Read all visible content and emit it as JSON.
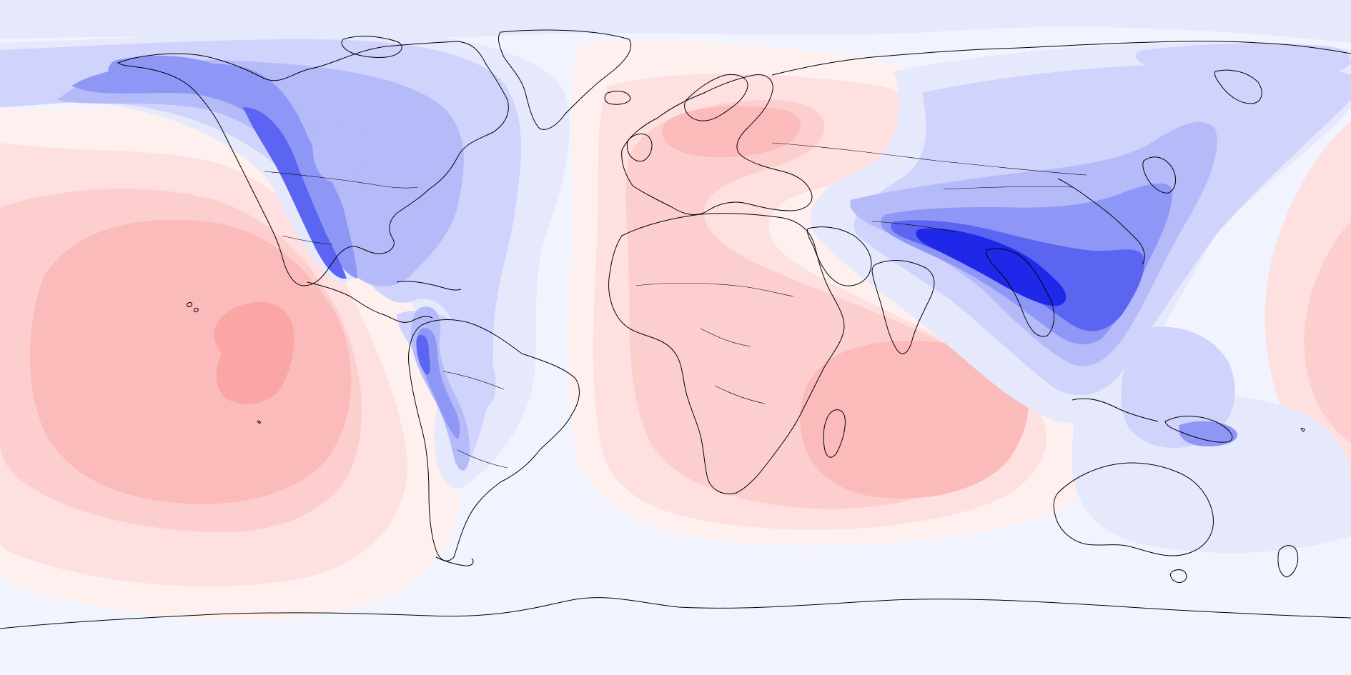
{
  "map": {
    "projection": "equirectangular",
    "center_longitude": -15,
    "colors": {
      "ocean_base": "#f1f3ff",
      "red_1": "#fef0ef",
      "red_2": "#fde0df",
      "red_3": "#fccfce",
      "red_4": "#fbbbba",
      "red_5": "#f9a6a5",
      "blue_1": "#e6e8fc",
      "blue_2": "#d0d3fb",
      "blue_3": "#b5baf9",
      "blue_4": "#8f97f6",
      "blue_5": "#5b65f1",
      "blue_6": "#1f28e9",
      "coast": "#000000"
    },
    "icons": {
      "coastline": "coastline-outline",
      "border": "country-border-outline"
    }
  }
}
